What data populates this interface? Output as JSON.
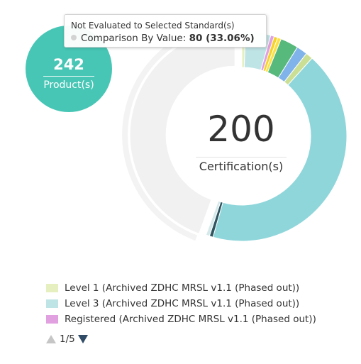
{
  "chart_data": {
    "type": "pie",
    "series": [
      {
        "slices": [
          {
            "value": 1,
            "color": "#e6efbf"
          },
          {
            "value": 7,
            "color": "#bfe4e6"
          },
          {
            "value": 1,
            "color": "#e1a0e0"
          },
          {
            "value": 1,
            "color": "#f5d327"
          },
          {
            "value": 1,
            "color": "#ffe044"
          },
          {
            "value": 5,
            "color": "#57b97c"
          },
          {
            "value": 3,
            "color": "#7fb3ea"
          },
          {
            "value": 2,
            "color": "#cbdf94"
          },
          {
            "value": 77,
            "color": "#8fd6db"
          },
          {
            "value": 1,
            "color": "#2f5560"
          },
          {
            "value": 1,
            "color": "#d6e9ea"
          },
          {
            "value": 80,
            "color": "#f1f1f1",
            "highlighted": true
          }
        ]
      }
    ],
    "total": {
      "value": "200",
      "label": "Certification(s)"
    }
  },
  "products": {
    "count": "242",
    "label": "Product(s)"
  },
  "tooltip": {
    "title": "Not Evaluated to Selected Standard(s)",
    "series_label": "Comparison By Value:",
    "value": "80 (33.06%)"
  },
  "legend": {
    "items": [
      {
        "label": "Level 1 (Archived ZDHC MRSL v1.1 (Phased out))",
        "color": "#e6efbf"
      },
      {
        "label": "Level 3 (Archived ZDHC MRSL v1.1 (Phased out))",
        "color": "#bfe4e6"
      },
      {
        "label": "Registered (Archived ZDHC MRSL v1.1 (Phased out))",
        "color": "#e1a0e0"
      }
    ],
    "page": "1/5"
  }
}
